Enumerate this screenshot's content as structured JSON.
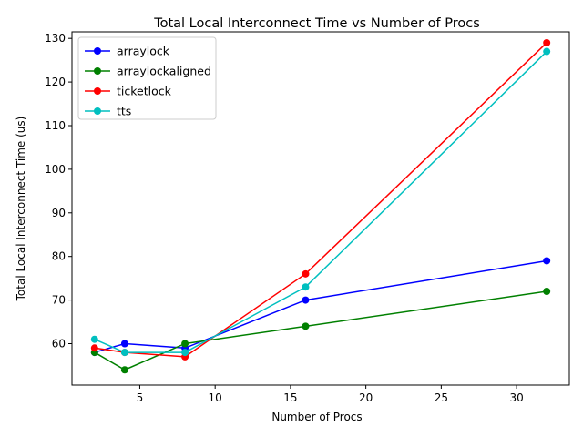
{
  "chart_data": {
    "type": "line",
    "title": "Total Local Interconnect Time vs Number of Procs",
    "xlabel": "Number of Procs",
    "ylabel": "Total Local Interconnect Time (us)",
    "xlim": [
      0.5,
      33.5
    ],
    "ylim": [
      50.5,
      131.5
    ],
    "xticks": [
      5,
      10,
      15,
      20,
      25,
      30
    ],
    "yticks": [
      60,
      70,
      80,
      90,
      100,
      110,
      120,
      130
    ],
    "grid": false,
    "legend_position": "top-left",
    "x": [
      2,
      4,
      8,
      16,
      32
    ],
    "series": [
      {
        "name": "arraylock",
        "color": "#0000ff",
        "values": [
          58,
          60,
          59,
          70,
          79
        ]
      },
      {
        "name": "arraylockaligned",
        "color": "#008000",
        "values": [
          58,
          54,
          60,
          64,
          72
        ]
      },
      {
        "name": "ticketlock",
        "color": "#ff0000",
        "values": [
          59,
          58,
          57,
          76,
          129
        ]
      },
      {
        "name": "tts",
        "color": "#00bfbf",
        "values": [
          61,
          58,
          58,
          73,
          127
        ]
      }
    ]
  }
}
